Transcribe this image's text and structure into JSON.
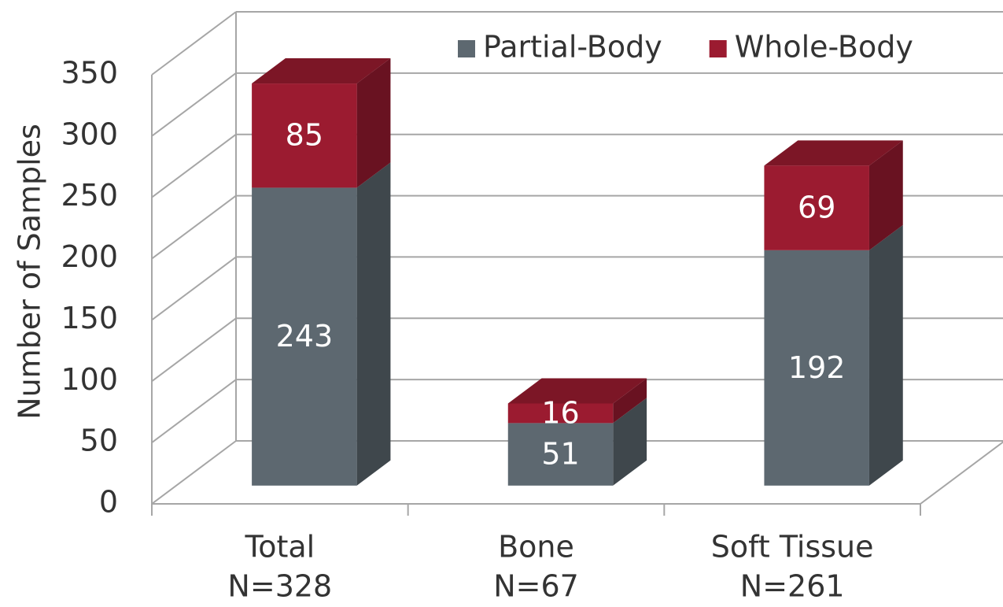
{
  "chart_data": {
    "type": "bar3d_stacked",
    "y_label": "Number of Samples",
    "categories": [
      [
        "Total",
        "N=328"
      ],
      [
        "Bone",
        "N=67"
      ],
      [
        "Soft Tissue",
        "N=261"
      ]
    ],
    "series": [
      {
        "name": "Partial-Body",
        "color": "#5d6870",
        "values": [
          243,
          51,
          192
        ]
      },
      {
        "name": "Whole-Body",
        "color": "#9b1b30",
        "values": [
          85,
          16,
          69
        ]
      }
    ],
    "ylim": [
      0,
      350
    ],
    "yticks": [
      0,
      50,
      100,
      150,
      200,
      250,
      300,
      350
    ],
    "grid": true,
    "legend": "top"
  }
}
